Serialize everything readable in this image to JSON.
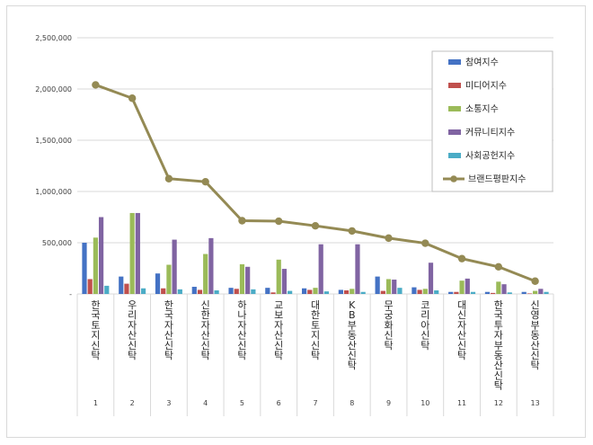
{
  "chart_data": {
    "type": "bar",
    "title": "",
    "xlabel": "",
    "ylabel": "",
    "ylim": [
      0,
      2500000
    ],
    "yticks": [
      0,
      500000,
      1000000,
      1500000,
      2000000,
      2500000
    ],
    "ytick_labels": [
      "-",
      "500,000",
      "1,000,000",
      "1,500,000",
      "2,000,000",
      "2,500,000"
    ],
    "grid": true,
    "legend_position": "top-right",
    "index_labels": [
      "1",
      "2",
      "3",
      "4",
      "5",
      "6",
      "7",
      "8",
      "9",
      "10",
      "11",
      "12",
      "13"
    ],
    "categories": [
      "한국토지신탁",
      "우리자산신탁",
      "한국자산신탁",
      "신한자산신탁",
      "하나자산신탁",
      "교보자산신탁",
      "대한토지신탁",
      "KB부동산신탁",
      "무궁화신탁",
      "코리아신탁",
      "대신자산신탁",
      "한국투자부동산신탁",
      "신영부동산신탁"
    ],
    "series": [
      {
        "name": "참여지수",
        "color": "#4472c4",
        "values": [
          500000,
          170000,
          200000,
          70000,
          60000,
          60000,
          55000,
          40000,
          170000,
          65000,
          20000,
          20000,
          20000
        ]
      },
      {
        "name": "미디어지수",
        "color": "#c0504d",
        "values": [
          145000,
          100000,
          55000,
          40000,
          50000,
          15000,
          40000,
          35000,
          30000,
          40000,
          20000,
          10000,
          5000
        ]
      },
      {
        "name": "소통지수",
        "color": "#9bbb59",
        "values": [
          550000,
          790000,
          285000,
          390000,
          290000,
          335000,
          60000,
          50000,
          145000,
          50000,
          130000,
          120000,
          30000
        ]
      },
      {
        "name": "커뮤니티지수",
        "color": "#8064a2",
        "values": [
          750000,
          790000,
          530000,
          545000,
          265000,
          245000,
          485000,
          485000,
          140000,
          305000,
          150000,
          95000,
          50000
        ]
      },
      {
        "name": "사회공헌지수",
        "color": "#4bacc6",
        "values": [
          80000,
          55000,
          45000,
          35000,
          45000,
          30000,
          25000,
          20000,
          60000,
          35000,
          20000,
          15000,
          20000
        ]
      }
    ],
    "line_series": {
      "name": "브랜드평판지수",
      "color": "#948a54",
      "values": [
        2040000,
        1910000,
        1125000,
        1095000,
        715000,
        710000,
        665000,
        615000,
        545000,
        495000,
        345000,
        265000,
        125000
      ]
    }
  }
}
